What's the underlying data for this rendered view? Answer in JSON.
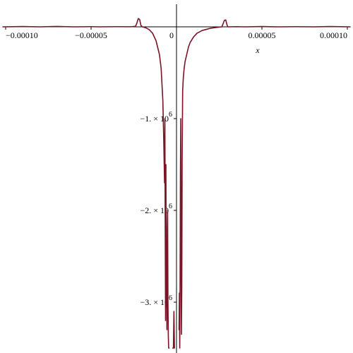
{
  "chart_data": {
    "type": "line",
    "title": "",
    "xlabel": "x",
    "ylabel": "",
    "xlim": [
      -0.0001,
      0.0001
    ],
    "ylim": [
      -3500000,
      250000
    ],
    "grid": false,
    "legend": "none",
    "x_ticks": [
      {
        "value": -0.0001,
        "label": "−0.00010"
      },
      {
        "value": -5e-05,
        "label": "−0.00005"
      },
      {
        "value": 0,
        "label": "0"
      },
      {
        "value": 5e-05,
        "label": "0.00005"
      },
      {
        "value": 0.0001,
        "label": "0.00010"
      }
    ],
    "y_ticks": [
      {
        "value": -1000000,
        "mantissa": "−1. × 10",
        "exponent": "6"
      },
      {
        "value": -2000000,
        "mantissa": "−2. × 10",
        "exponent": "6"
      },
      {
        "value": -3000000,
        "mantissa": "−3. × 10",
        "exponent": "6"
      }
    ],
    "series": [
      {
        "color": "#7a1426",
        "points": [
          [
            -0.000102,
            0
          ],
          [
            -9e-05,
            3000
          ],
          [
            -8e-05,
            0
          ],
          [
            -7e-05,
            4000
          ],
          [
            -6e-05,
            0
          ],
          [
            -5e-05,
            2000
          ],
          [
            -4.5e-05,
            0
          ],
          [
            -3.5e-05,
            2000
          ],
          [
            -2.7e-05,
            1000
          ],
          [
            -2.4e-05,
            5000
          ],
          [
            -2.32e-05,
            40000
          ],
          [
            -2.24e-05,
            90000
          ],
          [
            -2.16e-05,
            80000
          ],
          [
            -2.08e-05,
            15000
          ],
          [
            -2e-05,
            0
          ],
          [
            -1.8e-05,
            -10000
          ],
          [
            -1.6e-05,
            -30000
          ],
          [
            -1.4e-05,
            -70000
          ],
          [
            -1.2e-05,
            -150000
          ],
          [
            -1e-05,
            -300000
          ],
          [
            -9e-06,
            -450000
          ],
          [
            -8e-06,
            -800000
          ],
          [
            -7.5e-06,
            -1200000
          ],
          [
            -7e-06,
            -1700000
          ],
          [
            -6.8e-06,
            -1000000
          ],
          [
            -6.6e-06,
            -2200000
          ],
          [
            -6.4e-06,
            -3200000
          ],
          [
            -6.2e-06,
            -1500000
          ],
          [
            -6e-06,
            -3050000
          ],
          [
            -5.8e-06,
            -2700000
          ],
          [
            -5.6e-06,
            -3300000
          ],
          [
            -5.4e-06,
            -2200000
          ],
          [
            -5.2e-06,
            -2000000
          ],
          [
            -5e-06,
            -3000000
          ],
          [
            -4.8e-06,
            -3350000
          ],
          [
            -4.6e-06,
            -3500000
          ],
          [
            -4.3e-06,
            -3500000
          ]
        ]
      },
      {
        "color": "#7a1426",
        "points": [
          [
            -2.2e-06,
            -3500000
          ],
          [
            -1.8e-06,
            -3500000
          ],
          [
            -1.5e-06,
            -3100000
          ],
          [
            -1.2e-06,
            -3500000
          ]
        ]
      },
      {
        "color": "#7a1426",
        "points": [
          [
            1.5e-06,
            -3300000
          ],
          [
            1.7e-06,
            -2900000
          ],
          [
            1.9e-06,
            -3500000
          ],
          [
            2.1e-06,
            -2800000
          ],
          [
            2.3e-06,
            -1600000
          ],
          [
            2.5e-06,
            -1000000
          ],
          [
            2.7e-06,
            -2500000
          ],
          [
            2.9e-06,
            -3350000
          ],
          [
            3.1e-06,
            -2800000
          ],
          [
            3.3e-06,
            -1500000
          ],
          [
            3.6e-06,
            -700000
          ],
          [
            4e-06,
            -550000
          ],
          [
            4.5e-06,
            -450000
          ],
          [
            5e-06,
            -380000
          ],
          [
            6e-06,
            -300000
          ],
          [
            7e-06,
            -220000
          ],
          [
            8e-06,
            -170000
          ],
          [
            1e-05,
            -110000
          ],
          [
            1.2e-05,
            -70000
          ],
          [
            1.5e-05,
            -40000
          ],
          [
            2e-05,
            -15000
          ],
          [
            2.4e-05,
            -5000
          ],
          [
            2.65e-05,
            0
          ],
          [
            2.72e-05,
            30000
          ],
          [
            2.8e-05,
            70000
          ],
          [
            2.88e-05,
            75000
          ],
          [
            2.96e-05,
            20000
          ],
          [
            3e-05,
            0
          ],
          [
            3.5e-05,
            2000
          ],
          [
            4e-05,
            0
          ],
          [
            5e-05,
            3000
          ],
          [
            6e-05,
            0
          ],
          [
            7e-05,
            2000
          ],
          [
            8e-05,
            0
          ],
          [
            9e-05,
            3000
          ],
          [
            0.000102,
            0
          ]
        ]
      }
    ]
  }
}
